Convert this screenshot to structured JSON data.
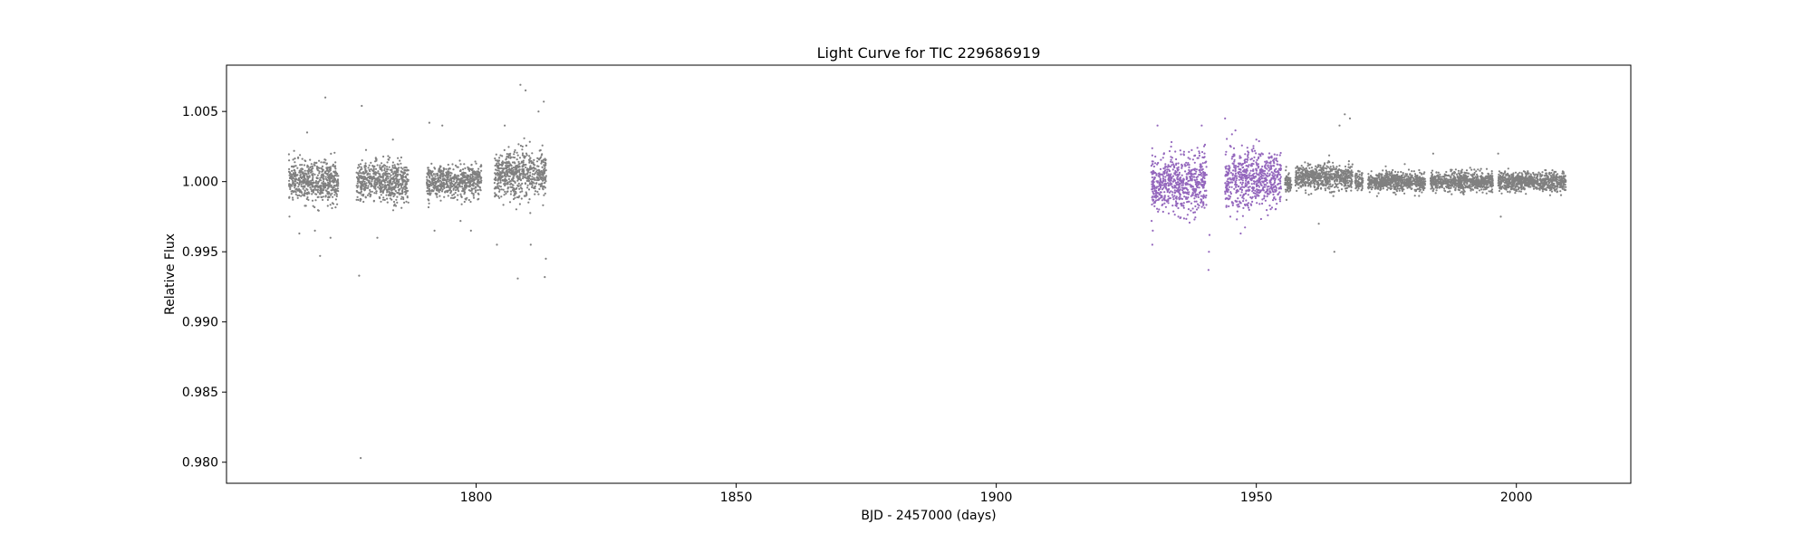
{
  "chart_data": {
    "type": "scatter",
    "title": "Light Curve for TIC 229686919",
    "xlabel": "BJD - 2457000 (days)",
    "ylabel": "Relative Flux",
    "xlim": [
      1752,
      2022
    ],
    "ylim": [
      0.9785,
      1.0083
    ],
    "grid": false,
    "legend": "none",
    "x_ticks": [
      1800,
      1850,
      1900,
      1950,
      2000
    ],
    "x_tick_labels": [
      "1800",
      "1850",
      "1900",
      "1950",
      "2000"
    ],
    "y_ticks": [
      0.98,
      0.985,
      0.99,
      0.995,
      1.0,
      1.005
    ],
    "y_tick_labels": [
      "0.980",
      "0.985",
      "0.990",
      "0.995",
      "1.000",
      "1.005"
    ],
    "series": [
      {
        "color": "#808080",
        "segments": [
          {
            "x": [
              1764.0,
              1773.5
            ],
            "center": 1.0,
            "spread": 0.0013
          },
          {
            "x": [
              1777.0,
              1787.0
            ],
            "center": 1.0,
            "spread": 0.0013
          },
          {
            "x": [
              1790.5,
              1801.0
            ],
            "center": 1.0,
            "spread": 0.001
          },
          {
            "x": [
              1803.5,
              1813.5
            ],
            "center": 1.0005,
            "spread": 0.0015
          },
          {
            "x": [
              1955.5,
              1956.8
            ],
            "center": 1.0,
            "spread": 0.0007
          },
          {
            "x": [
              1957.5,
              1968.5
            ],
            "center": 1.0003,
            "spread": 0.0008
          },
          {
            "x": [
              1969.0,
              1970.5
            ],
            "center": 1.0,
            "spread": 0.0006
          },
          {
            "x": [
              1971.5,
              1982.5
            ],
            "center": 1.0,
            "spread": 0.0006
          },
          {
            "x": [
              1983.5,
              1995.5
            ],
            "center": 1.0,
            "spread": 0.0006
          },
          {
            "x": [
              1996.5,
              2009.5
            ],
            "center": 1.0,
            "spread": 0.0006
          }
        ],
        "outliers": [
          [
            1766.0,
            0.9963
          ],
          [
            1767.5,
            1.0035
          ],
          [
            1769.0,
            0.9965
          ],
          [
            1770.0,
            0.9947
          ],
          [
            1771.0,
            1.006
          ],
          [
            1772.0,
            0.996
          ],
          [
            1777.5,
            0.9933
          ],
          [
            1777.8,
            0.9803
          ],
          [
            1778.0,
            1.0054
          ],
          [
            1781.0,
            0.996
          ],
          [
            1784.0,
            1.003
          ],
          [
            1791.0,
            1.0042
          ],
          [
            1792.0,
            0.9965
          ],
          [
            1793.5,
            1.004
          ],
          [
            1797.0,
            0.9972
          ],
          [
            1799.0,
            0.9965
          ],
          [
            1804.0,
            0.9955
          ],
          [
            1805.5,
            1.004
          ],
          [
            1808.0,
            0.9931
          ],
          [
            1808.5,
            1.0069
          ],
          [
            1809.5,
            1.0065
          ],
          [
            1810.5,
            0.9955
          ],
          [
            1812.0,
            1.005
          ],
          [
            1813.0,
            1.0057
          ],
          [
            1813.2,
            0.9932
          ],
          [
            1813.4,
            0.9945
          ],
          [
            1962.0,
            0.997
          ],
          [
            1965.0,
            0.995
          ],
          [
            1966.0,
            1.004
          ],
          [
            1967.0,
            1.0048
          ],
          [
            1968.0,
            1.0045
          ],
          [
            1984.0,
            1.002
          ],
          [
            1996.5,
            1.002
          ],
          [
            1997.0,
            0.9975
          ]
        ]
      },
      {
        "color": "#9467bd",
        "segments": [
          {
            "x": [
              1929.8,
              1940.5
            ],
            "center": 0.9999,
            "spread": 0.0019
          },
          {
            "x": [
              1944.0,
              1954.8
            ],
            "center": 1.0001,
            "spread": 0.0018
          }
        ],
        "outliers": [
          [
            1930.0,
            0.9955
          ],
          [
            1930.1,
            0.9965
          ],
          [
            1931.0,
            1.004
          ],
          [
            1935.0,
            0.9975
          ],
          [
            1939.5,
            1.004
          ],
          [
            1940.8,
            0.9937
          ],
          [
            1940.9,
            0.995
          ],
          [
            1941.0,
            0.9962
          ],
          [
            1944.0,
            1.0045
          ],
          [
            1945.0,
            0.9975
          ],
          [
            1947.0,
            0.9963
          ],
          [
            1950.0,
            1.003
          ]
        ]
      }
    ]
  }
}
